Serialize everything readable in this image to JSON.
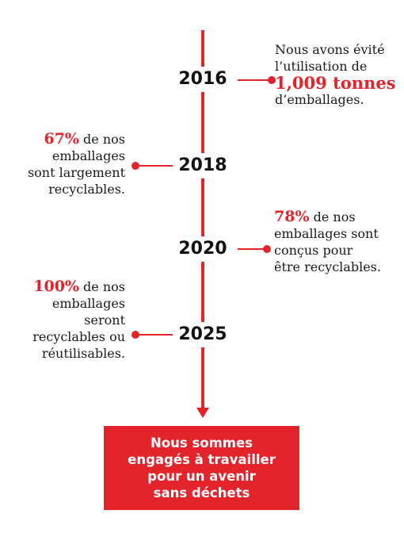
{
  "colors": {
    "accent": "#e3242b",
    "text": "#1a1a1a",
    "background": "#ffffff"
  },
  "milestones": [
    {
      "year": "2016",
      "side": "right",
      "lines": [
        "Nous avons évité",
        "l’utilisation de"
      ],
      "highlight": "1,009 tonnes",
      "tail": "d’emballages."
    },
    {
      "year": "2018",
      "side": "left",
      "highlight": "67%",
      "head_rest": " de nos",
      "lines": [
        "emballages",
        "sont largement",
        "recyclables."
      ]
    },
    {
      "year": "2020",
      "side": "right",
      "highlight": "78%",
      "head_rest": " de nos",
      "lines": [
        "emballages sont",
        "conçus pour",
        "être recyclables."
      ]
    },
    {
      "year": "2025",
      "side": "left",
      "highlight": "100%",
      "head_rest": " de nos",
      "lines": [
        "emballages",
        "seront",
        "recyclables ou",
        "réutilisables."
      ]
    }
  ],
  "callout": {
    "lines": [
      "Nous sommes",
      "engagés à travailler",
      "pour un avenir",
      "sans déchets"
    ]
  }
}
